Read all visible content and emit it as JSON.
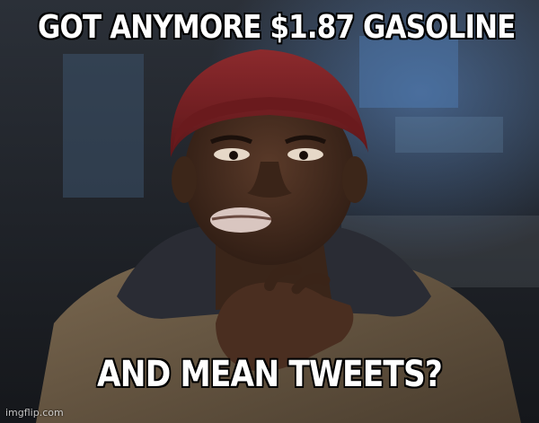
{
  "meme": {
    "top_text": "GOT ANYMORE $1.87 GASOLINE",
    "bottom_text": "AND MEAN TWEETS?",
    "watermark": "imgflip.com"
  },
  "scene": {
    "description_icon": "man-in-red-beanie-photo",
    "colors": {
      "background_dark": "#22262c",
      "lights": "#4f7fb8",
      "beanie": "#7a1e22",
      "skin": "#4a3022",
      "jacket": "#6b5a44",
      "hoodie": "#2a2c34"
    }
  }
}
